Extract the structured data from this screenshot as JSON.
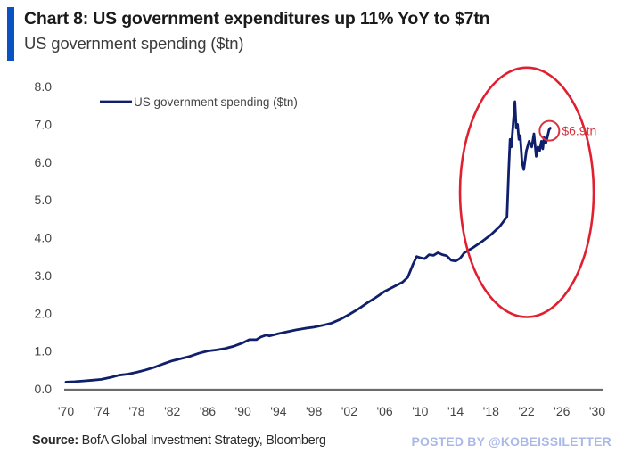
{
  "header": {
    "title": "Chart 8: US government expenditures up 11% YoY to $7tn",
    "subtitle": "US government spending ($tn)",
    "accent_color": "#0a52c4"
  },
  "footer": {
    "source_label": "Source:",
    "source_text": " BofA Global Investment Strategy, Bloomberg",
    "watermark": "POSTED BY @KOBEISSILETTER"
  },
  "chart_data": {
    "type": "line",
    "title": "Chart 8: US government expenditures up 11% YoY to $7tn",
    "subtitle": "US government spending ($tn)",
    "xlabel": "",
    "ylabel": "",
    "xlim": [
      1970,
      2030
    ],
    "ylim": [
      0,
      8
    ],
    "grid": false,
    "legend": {
      "position": "top-left",
      "entries": [
        "US government spending ($tn)"
      ]
    },
    "x_ticks": [
      1970,
      1974,
      1978,
      1982,
      1986,
      1990,
      1994,
      1998,
      2002,
      2006,
      2010,
      2014,
      2018,
      2022,
      2026,
      2030
    ],
    "x_tick_labels": [
      "'70",
      "'74",
      "'78",
      "'82",
      "'86",
      "'90",
      "'94",
      "'98",
      "'02",
      "'06",
      "'10",
      "'14",
      "'18",
      "'22",
      "'26",
      "'30"
    ],
    "y_ticks": [
      0,
      1,
      2,
      3,
      4,
      5,
      6,
      7,
      8
    ],
    "y_tick_labels": [
      "0.0",
      "1.0",
      "2.0",
      "3.0",
      "4.0",
      "5.0",
      "6.0",
      "7.0",
      "8.0"
    ],
    "series": [
      {
        "name": "US government spending ($tn)",
        "color": "#0f1f6b",
        "x": [
          1970,
          1971,
          1972,
          1973,
          1974,
          1975,
          1976,
          1977,
          1978,
          1979,
          1980,
          1981,
          1982,
          1983,
          1984,
          1985,
          1986,
          1987,
          1988,
          1989,
          1990,
          1990.7,
          1991.5,
          1992,
          1992.6,
          1993,
          1994,
          1995,
          1996,
          1997,
          1998,
          1999,
          2000,
          2001,
          2002,
          2003,
          2004,
          2005,
          2006,
          2007,
          2008,
          2008.6,
          2009.2,
          2009.6,
          2010,
          2010.5,
          2011,
          2011.5,
          2012,
          2012.5,
          2013,
          2013.5,
          2014,
          2014.5,
          2015,
          2016,
          2017,
          2018,
          2019,
          2019.8,
          2020.0,
          2020.15,
          2020.3,
          2020.5,
          2020.7,
          2020.85,
          2021.0,
          2021.15,
          2021.3,
          2021.5,
          2021.7,
          2022.0,
          2022.3,
          2022.6,
          2022.85,
          2023.1,
          2023.3,
          2023.5,
          2023.7,
          2023.85,
          2024.0,
          2024.2,
          2024.4,
          2024.55,
          2024.7
        ],
        "values": [
          0.18,
          0.19,
          0.21,
          0.23,
          0.25,
          0.3,
          0.36,
          0.39,
          0.44,
          0.5,
          0.57,
          0.66,
          0.74,
          0.8,
          0.86,
          0.94,
          1.0,
          1.03,
          1.07,
          1.13,
          1.22,
          1.3,
          1.3,
          1.37,
          1.42,
          1.4,
          1.46,
          1.51,
          1.56,
          1.6,
          1.63,
          1.68,
          1.74,
          1.84,
          1.97,
          2.11,
          2.27,
          2.42,
          2.58,
          2.7,
          2.82,
          2.95,
          3.3,
          3.5,
          3.47,
          3.44,
          3.55,
          3.53,
          3.6,
          3.55,
          3.52,
          3.4,
          3.38,
          3.45,
          3.6,
          3.74,
          3.9,
          4.08,
          4.3,
          4.55,
          5.8,
          6.6,
          6.4,
          7.0,
          7.6,
          6.9,
          7.0,
          6.6,
          6.7,
          6.0,
          5.8,
          6.3,
          6.55,
          6.4,
          6.75,
          6.15,
          6.4,
          6.3,
          6.55,
          6.35,
          6.65,
          6.5,
          6.7,
          6.85,
          6.9
        ]
      }
    ],
    "annotations": [
      {
        "type": "circle-marker",
        "x": 2024.7,
        "y": 6.9,
        "label": "$6.9tn",
        "color": "#d9333f"
      },
      {
        "type": "highlight-ellipse",
        "x_range": [
          2014.5,
          2030
        ],
        "y_range": [
          1.9,
          8.5
        ],
        "color": "#e02030"
      }
    ]
  }
}
